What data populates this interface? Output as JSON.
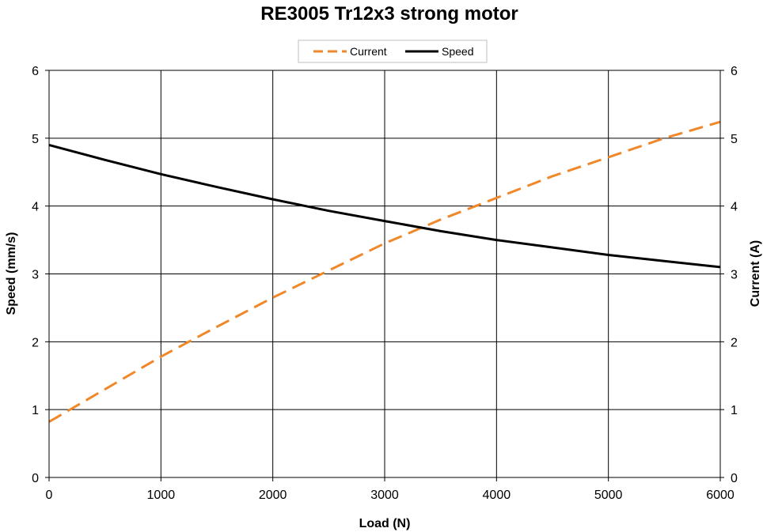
{
  "chart_data": {
    "type": "line",
    "title": "RE3005 Tr12x3 strong motor",
    "xlabel": "Load (N)",
    "ylabel": "Speed (mm/s)",
    "y2label": "Current (A)",
    "xlim": [
      0,
      6000
    ],
    "ylim": [
      0,
      6
    ],
    "y2lim": [
      0,
      6
    ],
    "x_ticks": [
      "0",
      "1000",
      "2000",
      "3000",
      "4000",
      "5000",
      "6000"
    ],
    "y_ticks": [
      "0",
      "1",
      "2",
      "3",
      "4",
      "5",
      "6"
    ],
    "y2_ticks": [
      "0",
      "1",
      "2",
      "3",
      "4",
      "5",
      "6"
    ],
    "grid": true,
    "legend_position": "top-center",
    "x": [
      0,
      500,
      1000,
      1500,
      2000,
      2500,
      3000,
      3500,
      4000,
      4500,
      5000,
      5500,
      6000
    ],
    "series": [
      {
        "name": "Current",
        "axis": "right",
        "style": "dashed",
        "color": "#f0882a",
        "values": [
          0.82,
          1.3,
          1.78,
          2.22,
          2.65,
          3.05,
          3.45,
          3.8,
          4.12,
          4.44,
          4.72,
          5.0,
          5.24
        ]
      },
      {
        "name": "Speed",
        "axis": "left",
        "style": "solid",
        "color": "#000000",
        "values": [
          4.9,
          4.68,
          4.47,
          4.28,
          4.1,
          3.93,
          3.78,
          3.63,
          3.5,
          3.39,
          3.28,
          3.19,
          3.1
        ]
      }
    ]
  }
}
